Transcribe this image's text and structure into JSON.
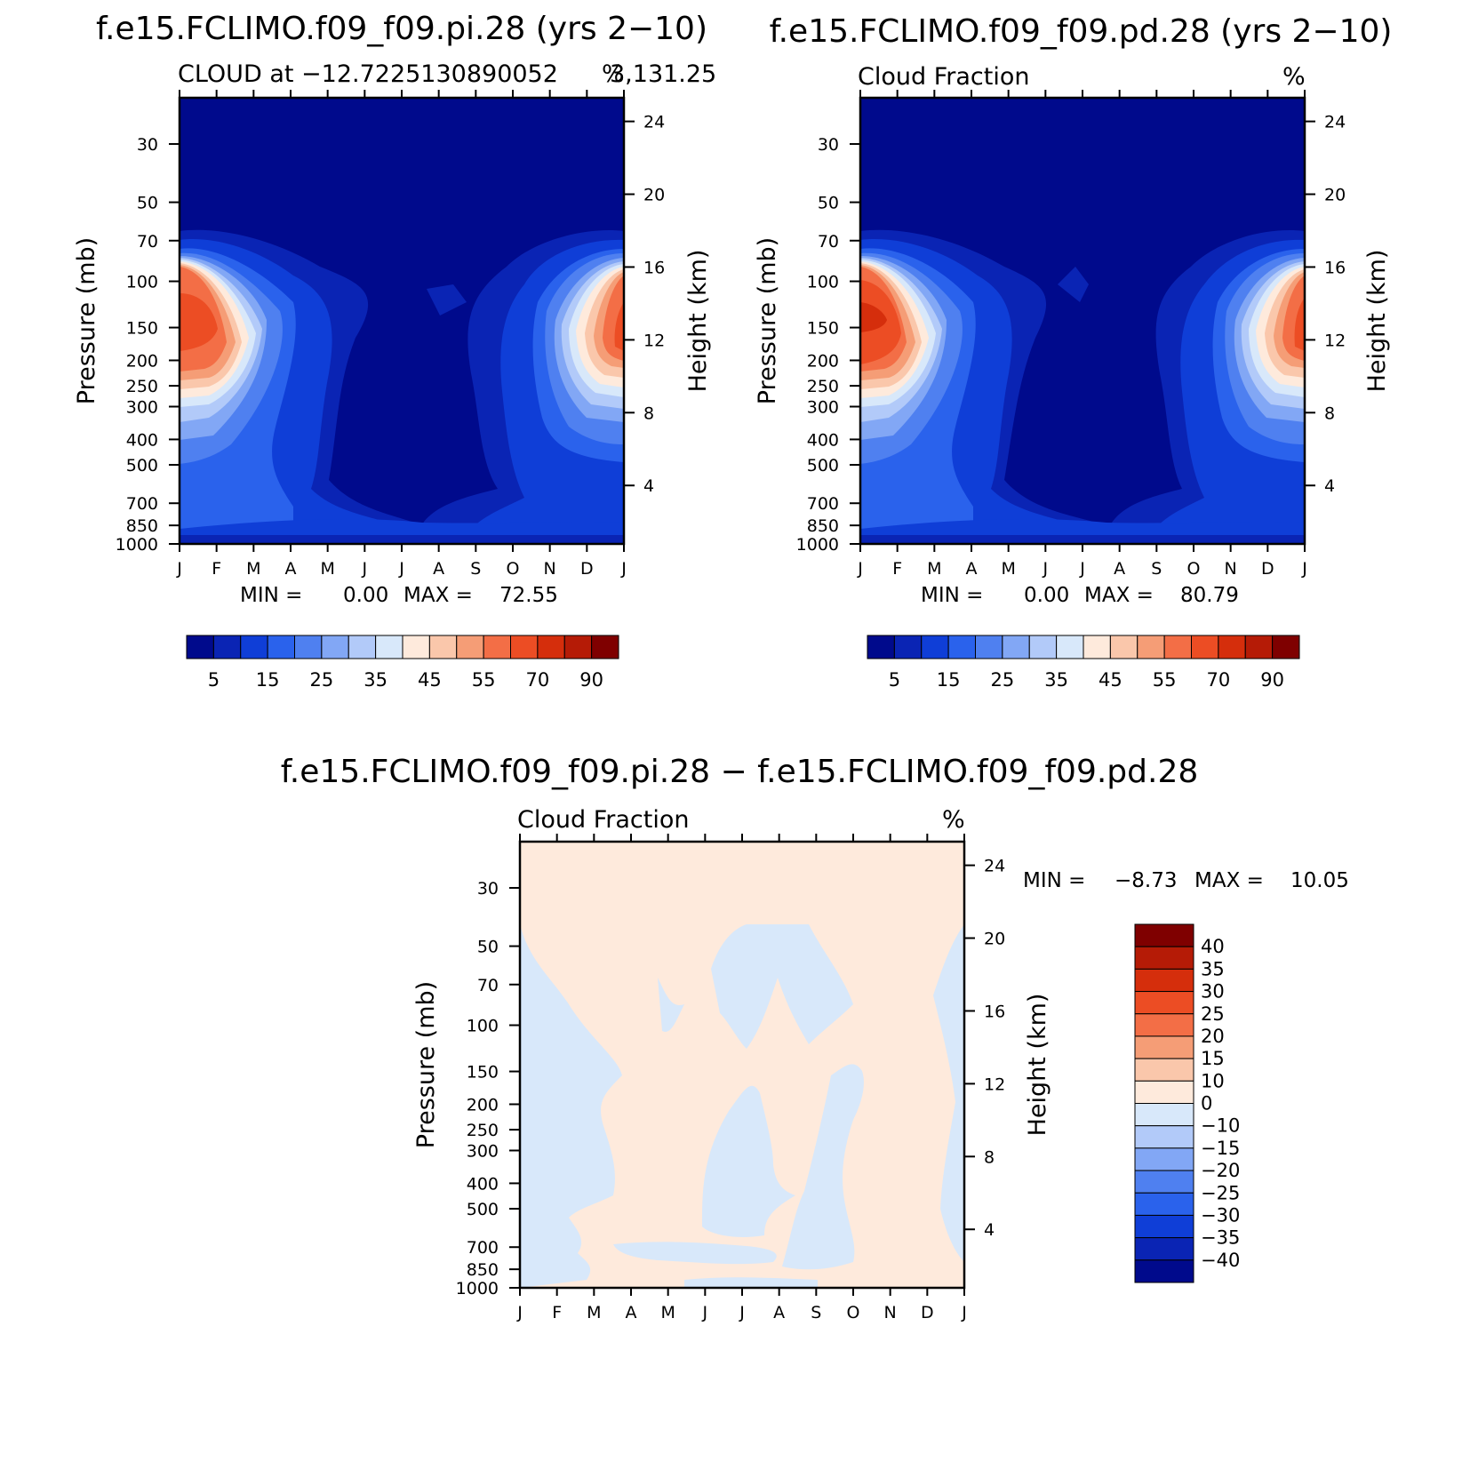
{
  "chart_data": [
    {
      "type": "contour",
      "title": "f.e15.FCLIMO.f09_f09.pi.28 (yrs 2−10)",
      "subtitle_left": "CLOUD at −12.7225130890052",
      "subtitle_right": "%",
      "subtitle_coords": "3,131.25",
      "ylabel": "Pressure (mb)",
      "ylabel_right": "Height (km)",
      "x_ticks": [
        "J",
        "F",
        "M",
        "A",
        "M",
        "J",
        "J",
        "A",
        "S",
        "O",
        "N",
        "D",
        "J"
      ],
      "y_ticks": [
        "30",
        "50",
        "70",
        "100",
        "150",
        "200",
        "250",
        "300",
        "400",
        "500",
        "700",
        "850",
        "1000"
      ],
      "height_ticks": [
        "24",
        "20",
        "16",
        "12",
        "8",
        "4"
      ],
      "min_label": "MIN =",
      "min_value": "0.00",
      "max_label": "MAX =",
      "max_value": "72.55",
      "colorbar_labels": [
        "5",
        "15",
        "25",
        "35",
        "45",
        "55",
        "70",
        "90"
      ],
      "colorbar_colors": [
        "#000a8c",
        "#0a24b4",
        "#0f3ed7",
        "#2a62ec",
        "#4f80f0",
        "#82a7f5",
        "#b2caf9",
        "#d8e8fa",
        "#feeadc",
        "#fac7ab",
        "#f59d76",
        "#f36e46",
        "#ec4d24",
        "#d52e0c",
        "#b51b06",
        "#7f0000"
      ]
    },
    {
      "type": "contour",
      "title": "f.e15.FCLIMO.f09_f09.pd.28 (yrs 2−10)",
      "subtitle_left": "Cloud Fraction",
      "subtitle_right": "%",
      "ylabel": "Pressure (mb)",
      "ylabel_right": "Height (km)",
      "x_ticks": [
        "J",
        "F",
        "M",
        "A",
        "M",
        "J",
        "J",
        "A",
        "S",
        "O",
        "N",
        "D",
        "J"
      ],
      "y_ticks": [
        "30",
        "50",
        "70",
        "100",
        "150",
        "200",
        "250",
        "300",
        "400",
        "500",
        "700",
        "850",
        "1000"
      ],
      "height_ticks": [
        "24",
        "20",
        "16",
        "12",
        "8",
        "4"
      ],
      "min_label": "MIN =",
      "min_value": "0.00",
      "max_label": "MAX =",
      "max_value": "80.79",
      "colorbar_labels": [
        "5",
        "15",
        "25",
        "35",
        "45",
        "55",
        "70",
        "90"
      ],
      "colorbar_colors": [
        "#000a8c",
        "#0a24b4",
        "#0f3ed7",
        "#2a62ec",
        "#4f80f0",
        "#82a7f5",
        "#b2caf9",
        "#d8e8fa",
        "#feeadc",
        "#fac7ab",
        "#f59d76",
        "#f36e46",
        "#ec4d24",
        "#d52e0c",
        "#b51b06",
        "#7f0000"
      ]
    },
    {
      "type": "contour",
      "title": "f.e15.FCLIMO.f09_f09.pi.28 − f.e15.FCLIMO.f09_f09.pd.28",
      "subtitle_left": "Cloud Fraction",
      "subtitle_right": "%",
      "ylabel": "Pressure (mb)",
      "ylabel_right": "Height (km)",
      "x_ticks": [
        "J",
        "F",
        "M",
        "A",
        "M",
        "J",
        "J",
        "A",
        "S",
        "O",
        "N",
        "D",
        "J"
      ],
      "y_ticks": [
        "30",
        "50",
        "70",
        "100",
        "150",
        "200",
        "250",
        "300",
        "400",
        "500",
        "700",
        "850",
        "1000"
      ],
      "height_ticks": [
        "24",
        "20",
        "16",
        "12",
        "8",
        "4"
      ],
      "min_label": "MIN =",
      "min_value": "−8.73",
      "max_label": "MAX =",
      "max_value": "10.05",
      "colorbar_labels": [
        "40",
        "35",
        "30",
        "25",
        "20",
        "15",
        "10",
        "0",
        "−10",
        "−15",
        "−20",
        "−25",
        "−30",
        "−35",
        "−40"
      ],
      "colorbar_colors": [
        "#7f0000",
        "#b51b06",
        "#d52e0c",
        "#ec4d24",
        "#f36e46",
        "#f59d76",
        "#fac7ab",
        "#feeadc",
        "#d8e8fa",
        "#b2caf9",
        "#82a7f5",
        "#4f80f0",
        "#2a62ec",
        "#0f3ed7",
        "#0a24b4",
        "#000a8c"
      ]
    }
  ]
}
